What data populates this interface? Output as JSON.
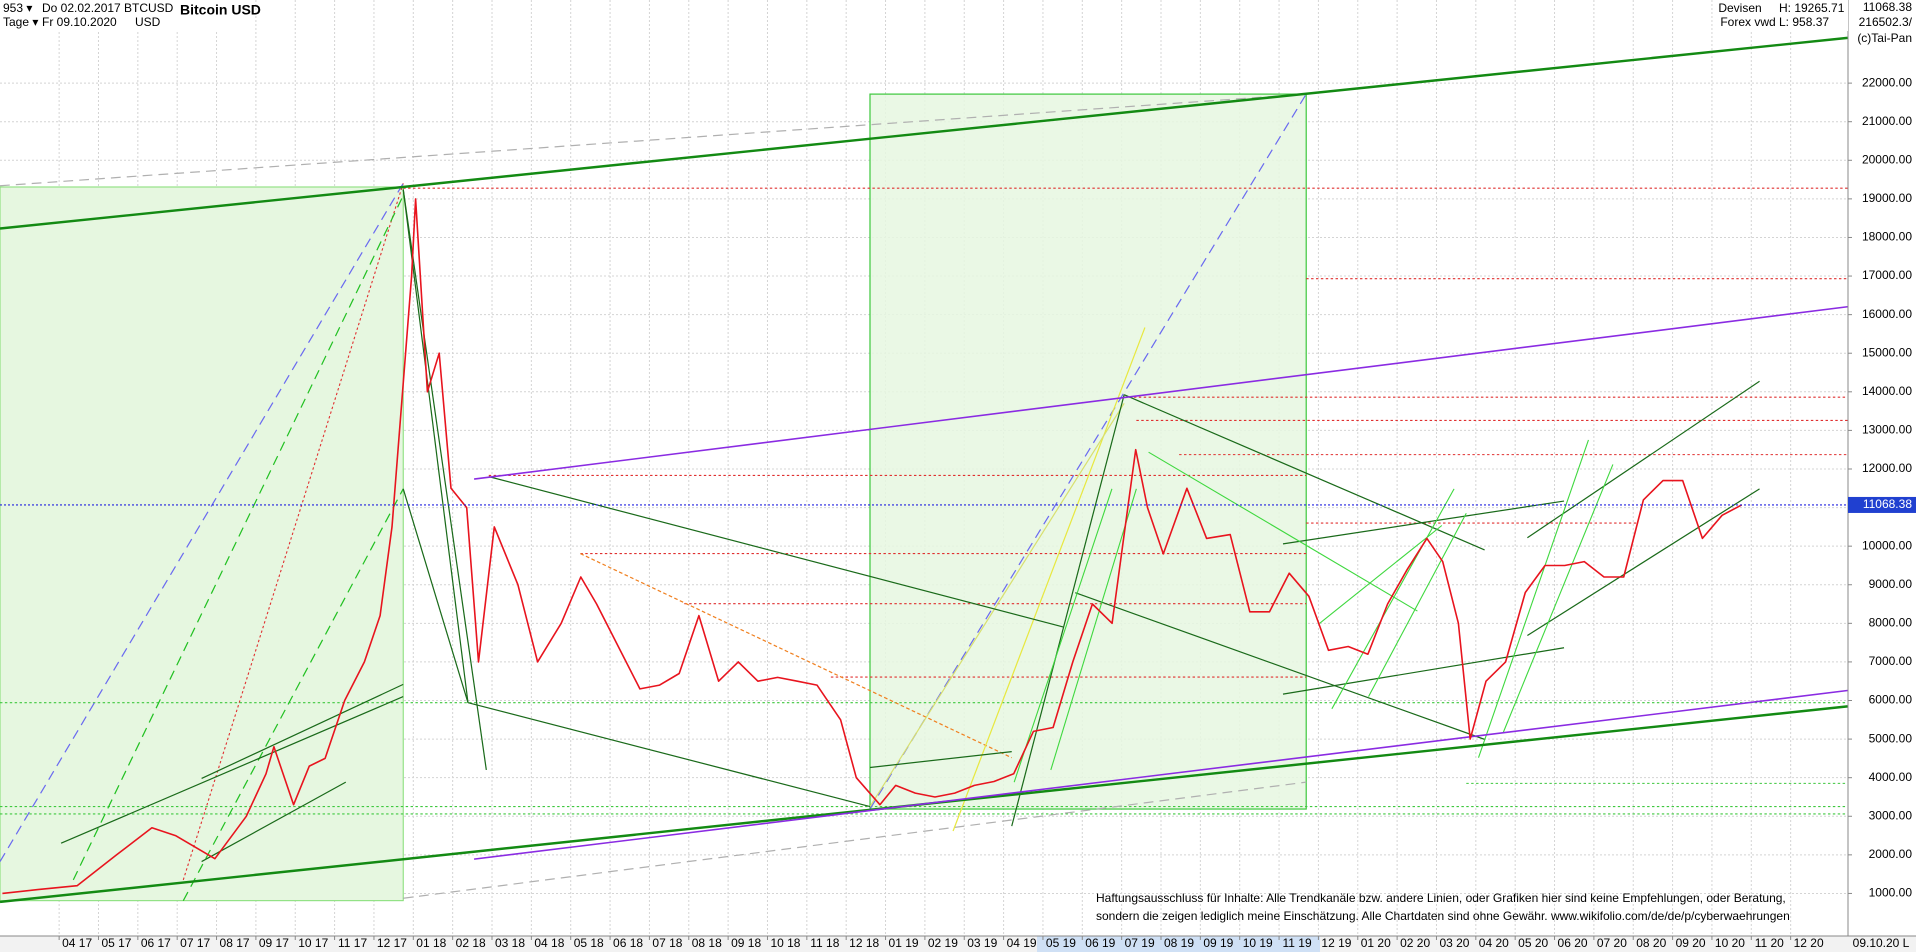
{
  "header": {
    "count": "953 ▾",
    "period": "Tage ▾",
    "from": "Do 02.02.2017",
    "to": "Fr 09.10.2020",
    "symbol": "BTCUSD",
    "currency": "USD",
    "market": "Devisen",
    "source": "Forex vwd",
    "high": "H: 19265.71",
    "low": "L: 958.37",
    "last": "11068.38",
    "volume": "216502.3/",
    "copyright": "(c)Tai-Pan",
    "end_date": "09.10.20",
    "scale_mode": "L",
    "disclaimer": [
      "Haftungsausschluss für Inhalte: Alle Trendkanäle bzw. andere Linien, oder Grafiken hier sind keine Empfehlungen, oder Beratung,",
      "sondern die zeigen lediglich meine  Einschätzung. Alle Chartdaten sind ohne Gewähr.  www.wikifolio.com/de/de/p/cyberwaehrungen"
    ]
  },
  "chart_data": {
    "type": "line",
    "title": "Bitcoin USD",
    "color": "#e8141e",
    "grid": true,
    "x": [
      1.1,
      2.0,
      3.0,
      4.0,
      4.9,
      5.5,
      6.5,
      7.3,
      7.8,
      8.0,
      8.5,
      8.9,
      9.3,
      9.8,
      10.3,
      10.7,
      11.0,
      11.5,
      11.6,
      11.9,
      12.2,
      12.5,
      12.9,
      13.2,
      13.6,
      14.2,
      14.7,
      15.3,
      15.8,
      16.2,
      16.7,
      17.3,
      17.8,
      18.3,
      18.8,
      19.3,
      19.8,
      20.3,
      20.8,
      21.3,
      21.8,
      22.4,
      22.8,
      23.4,
      23.8,
      24.3,
      24.8,
      25.3,
      25.8,
      26.3,
      26.8,
      27.3,
      27.8,
      28.3,
      28.8,
      29.3,
      29.7,
      29.9,
      30.2,
      30.6,
      31.2,
      31.7,
      32.3,
      32.8,
      33.3,
      33.8,
      34.3,
      34.8,
      35.3,
      35.8,
      36.3,
      36.8,
      37.3,
      37.7,
      38.1,
      38.4,
      38.8,
      39.3,
      39.8,
      40.3,
      40.8,
      41.3,
      41.8,
      42.3,
      42.8,
      43.3,
      43.8,
      44.3,
      44.8,
      45.3
    ],
    "values": [
      1000,
      1100,
      1200,
      2000,
      2700,
      2500,
      1900,
      3000,
      4100,
      4800,
      3300,
      4300,
      4500,
      6000,
      7000,
      8200,
      10500,
      17000,
      19000,
      14000,
      15000,
      11500,
      11000,
      7000,
      10500,
      9000,
      7000,
      8000,
      9200,
      8500,
      7500,
      6300,
      6400,
      6700,
      8200,
      6500,
      7000,
      6500,
      6600,
      6500,
      6400,
      5500,
      4000,
      3300,
      3800,
      3600,
      3500,
      3600,
      3800,
      3900,
      4100,
      5200,
      5300,
      7000,
      8500,
      8000,
      11000,
      12500,
      11000,
      9800,
      11500,
      10200,
      10300,
      8300,
      8300,
      9300,
      8700,
      7300,
      7400,
      7200,
      8500,
      9400,
      10200,
      9600,
      8000,
      5000,
      6500,
      7000,
      8800,
      9500,
      9500,
      9600,
      9200,
      9200,
      11200,
      11700,
      11700,
      10200,
      10800,
      11068
    ],
    "xlim": [
      1.04,
      48
    ],
    "xticks": [
      {
        "value": 3,
        "label": "04 17"
      },
      {
        "value": 4,
        "label": "05 17"
      },
      {
        "value": 5,
        "label": "06 17"
      },
      {
        "value": 6,
        "label": "07 17"
      },
      {
        "value": 7,
        "label": "08 17"
      },
      {
        "value": 8,
        "label": "09 17"
      },
      {
        "value": 9,
        "label": "10 17"
      },
      {
        "value": 10,
        "label": "11 17"
      },
      {
        "value": 11,
        "label": "12 17"
      },
      {
        "value": 12,
        "label": "01 18"
      },
      {
        "value": 13,
        "label": "02 18"
      },
      {
        "value": 14,
        "label": "03 18"
      },
      {
        "value": 15,
        "label": "04 18"
      },
      {
        "value": 16,
        "label": "05 18"
      },
      {
        "value": 17,
        "label": "06 18"
      },
      {
        "value": 18,
        "label": "07 18"
      },
      {
        "value": 19,
        "label": "08 18"
      },
      {
        "value": 20,
        "label": "09 18"
      },
      {
        "value": 21,
        "label": "10 18"
      },
      {
        "value": 22,
        "label": "11 18"
      },
      {
        "value": 23,
        "label": "12 18"
      },
      {
        "value": 24,
        "label": "01 19"
      },
      {
        "value": 25,
        "label": "02 19"
      },
      {
        "value": 26,
        "label": "03 19"
      },
      {
        "value": 27,
        "label": "04 19"
      },
      {
        "value": 28,
        "label": "05 19"
      },
      {
        "value": 29,
        "label": "06 19"
      },
      {
        "value": 30,
        "label": "07 19"
      },
      {
        "value": 31,
        "label": "08 19"
      },
      {
        "value": 32,
        "label": "09 19"
      },
      {
        "value": 33,
        "label": "10 19"
      },
      {
        "value": 34,
        "label": "11 19"
      },
      {
        "value": 35,
        "label": "12 19"
      },
      {
        "value": 36,
        "label": "01 20"
      },
      {
        "value": 37,
        "label": "02 20"
      },
      {
        "value": 38,
        "label": "03 20"
      },
      {
        "value": 39,
        "label": "04 20"
      },
      {
        "value": 40,
        "label": "05 20"
      },
      {
        "value": 41,
        "label": "06 20"
      },
      {
        "value": 42,
        "label": "07 20"
      },
      {
        "value": 43,
        "label": "08 20"
      },
      {
        "value": 44,
        "label": "09 20"
      },
      {
        "value": 45,
        "label": "10 20"
      },
      {
        "value": 46,
        "label": "11 20"
      },
      {
        "value": 47,
        "label": "12 20"
      }
    ],
    "ylim": [
      -77,
      24154
    ],
    "yticks": [
      {
        "value": 1000,
        "label": "1000.00"
      },
      {
        "value": 2000,
        "label": "2000.00"
      },
      {
        "value": 3000,
        "label": "3000.00"
      },
      {
        "value": 4000,
        "label": "4000.00"
      },
      {
        "value": 5000,
        "label": "5000.00"
      },
      {
        "value": 6000,
        "label": "6000.00"
      },
      {
        "value": 7000,
        "label": "7000.00"
      },
      {
        "value": 8000,
        "label": "8000.00"
      },
      {
        "value": 9000,
        "label": "9000.00"
      },
      {
        "value": 10000,
        "label": "10000.00"
      },
      {
        "value": 11000,
        "label": "11000.00"
      },
      {
        "value": 12000,
        "label": "12000.00"
      },
      {
        "value": 13000,
        "label": "13000.00"
      },
      {
        "value": 14000,
        "label": "14000.00"
      },
      {
        "value": 15000,
        "label": "15000.00"
      },
      {
        "value": 16000,
        "label": "16000.00"
      },
      {
        "value": 17000,
        "label": "17000.00"
      },
      {
        "value": 18000,
        "label": "18000.00"
      },
      {
        "value": 19000,
        "label": "19000.00"
      },
      {
        "value": 20000,
        "label": "20000.00"
      },
      {
        "value": 21000,
        "label": "21000.00"
      },
      {
        "value": 22000,
        "label": "22000.00"
      }
    ]
  }
}
